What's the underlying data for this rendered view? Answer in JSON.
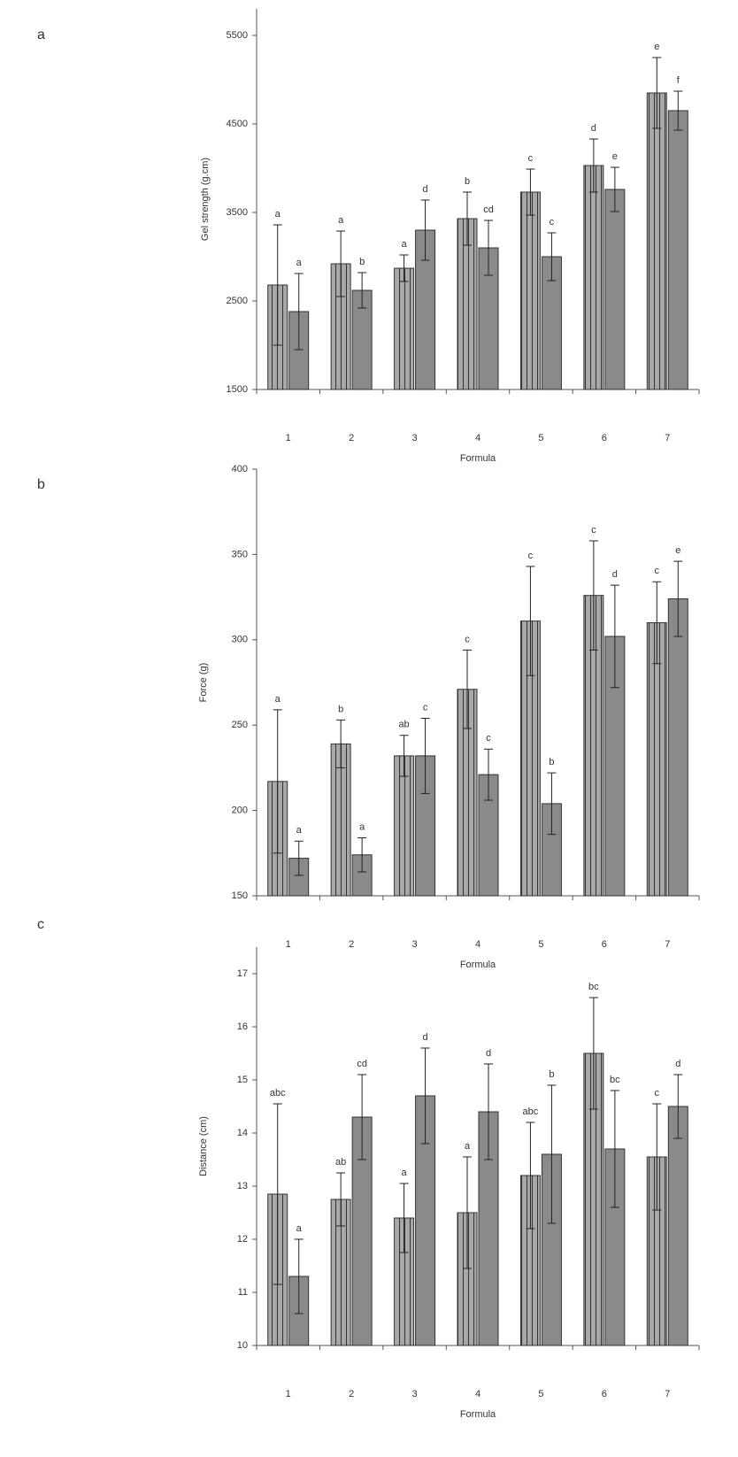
{
  "chart_data": [
    {
      "type": "bar",
      "panel": "a",
      "ylabel": "Gel strength (g.cm)",
      "xlabel": "Formula",
      "categories": [
        "1",
        "2",
        "3",
        "4",
        "5",
        "6",
        "7"
      ],
      "series": [
        {
          "color": "#a8a8a8",
          "values": [
            2680,
            2920,
            2870,
            3430,
            3730,
            4030,
            4850
          ],
          "errors": [
            680,
            370,
            150,
            300,
            260,
            300,
            400
          ],
          "letters": [
            "a",
            "a",
            "a",
            "b",
            "c",
            "d",
            "e"
          ]
        },
        {
          "color": "#8a8a8a",
          "values": [
            2380,
            2620,
            3300,
            3100,
            3000,
            3760,
            4650
          ],
          "errors": [
            430,
            200,
            340,
            310,
            270,
            250,
            220
          ],
          "letters": [
            "a",
            "b",
            "d",
            "cd",
            "c",
            "e",
            "f"
          ]
        }
      ],
      "ylim": [
        1500,
        5800
      ],
      "yticks": [
        1500,
        2500,
        3500,
        4500,
        5500
      ]
    },
    {
      "type": "bar",
      "panel": "b",
      "ylabel": "Force (g)",
      "xlabel": "Formula",
      "categories": [
        "1",
        "2",
        "3",
        "4",
        "5",
        "6",
        "7"
      ],
      "series": [
        {
          "color": "#a8a8a8",
          "values": [
            217,
            239,
            232,
            271,
            311,
            326,
            310
          ],
          "errors": [
            42,
            14,
            12,
            23,
            32,
            32,
            24
          ],
          "letters": [
            "a",
            "b",
            "ab",
            "c",
            "c",
            "c",
            "c"
          ]
        },
        {
          "color": "#8a8a8a",
          "values": [
            172,
            174,
            232,
            221,
            204,
            302,
            324
          ],
          "errors": [
            10,
            10,
            22,
            15,
            18,
            30,
            22
          ],
          "letters": [
            "a",
            "a",
            "c",
            "c",
            "b",
            "d",
            "e"
          ]
        }
      ],
      "ylim": [
        150,
        400
      ],
      "yticks": [
        150,
        200,
        250,
        300,
        350,
        400
      ]
    },
    {
      "type": "bar",
      "panel": "c",
      "ylabel": "Distance (cm)",
      "xlabel": "Formula",
      "categories": [
        "1",
        "2",
        "3",
        "4",
        "5",
        "6",
        "7"
      ],
      "series": [
        {
          "color": "#a8a8a8",
          "values": [
            12.85,
            12.75,
            12.4,
            12.5,
            13.2,
            15.5,
            13.55
          ],
          "errors": [
            1.7,
            0.5,
            0.65,
            1.05,
            1.0,
            1.05,
            1.0
          ],
          "letters": [
            "abc",
            "ab",
            "a",
            "a",
            "abc",
            "bc",
            "c"
          ]
        },
        {
          "color": "#8a8a8a",
          "values": [
            11.3,
            14.3,
            14.7,
            14.4,
            13.6,
            13.7,
            14.5
          ],
          "errors": [
            0.7,
            0.8,
            0.9,
            0.9,
            1.3,
            1.1,
            0.6
          ],
          "letters": [
            "a",
            "cd",
            "d",
            "d",
            "b",
            "bc",
            "d"
          ]
        }
      ],
      "ylim": [
        10,
        17.5
      ],
      "yticks": [
        10,
        11,
        12,
        13,
        14,
        15,
        16,
        17
      ]
    }
  ]
}
